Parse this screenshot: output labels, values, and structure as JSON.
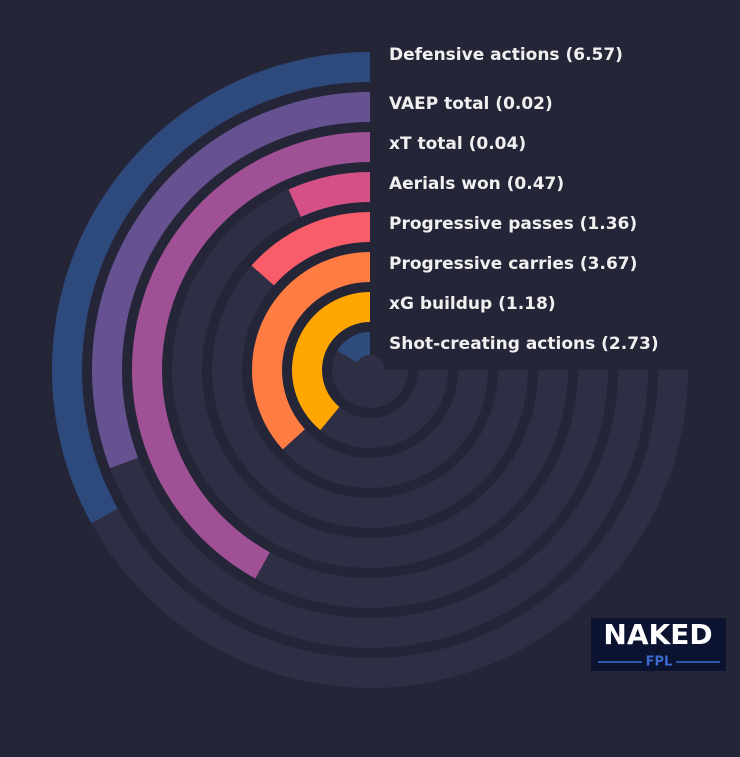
{
  "chart_data": {
    "type": "radial-bar",
    "categories": [
      "Defensive actions (6.57)",
      "VAEP total (0.02)",
      "xT total (0.04)",
      "Aerials won (0.47)",
      "Progressive passes (1.36)",
      "Progressive carries (3.67)",
      "xG buildup (1.18)",
      "Shot-creating actions (2.73)"
    ],
    "values": [
      44,
      41,
      56,
      9,
      18,
      49,
      52,
      22
    ],
    "colors": [
      "#2e4a7d",
      "#665191",
      "#a05195",
      "#d45087",
      "#f95d6a",
      "#ff7c43",
      "#ffa600",
      "#2f4b7c"
    ],
    "ylim": [
      0,
      100
    ]
  },
  "logo": {
    "title": "NAKED",
    "subtitle": "FPL"
  }
}
